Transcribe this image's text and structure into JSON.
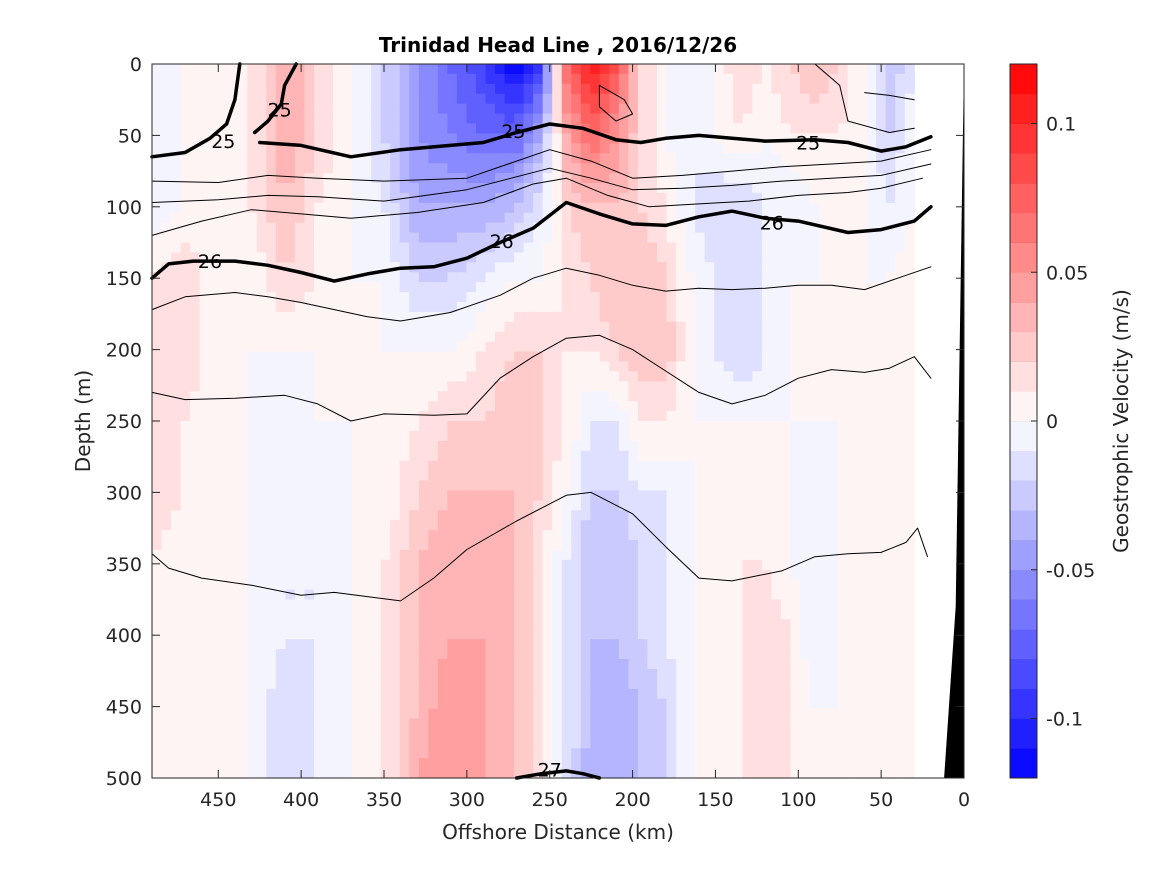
{
  "chart_data": {
    "type": "heatmap",
    "title": "Trinidad Head Line , 2016/12/26",
    "xlabel": "Offshore Distance (km)",
    "ylabel": "Depth (m)",
    "colorbar_label": "Geostrophic Velocity (m/s)",
    "xlim": [
      490,
      0
    ],
    "ylim": [
      0,
      500
    ],
    "x_reversed": true,
    "y_reversed": true,
    "x_ticks": [
      450,
      400,
      350,
      300,
      250,
      200,
      150,
      100,
      50,
      0
    ],
    "y_ticks": [
      0,
      50,
      100,
      150,
      200,
      250,
      300,
      350,
      400,
      450,
      500
    ],
    "colorbar_range": [
      -0.12,
      0.12
    ],
    "colorbar_ticks": [
      0.1,
      0.05,
      0,
      -0.05,
      -0.1
    ],
    "colorbar_levels": 24,
    "colormap": {
      "negative": "#0000ff",
      "zero": "#ffffff",
      "positive": "#ff0000"
    },
    "velocity_field": {
      "x": [
        490,
        470,
        450,
        430,
        410,
        390,
        370,
        350,
        330,
        310,
        290,
        270,
        255,
        240,
        225,
        210,
        195,
        180,
        165,
        150,
        135,
        120,
        105,
        90,
        75,
        60,
        45,
        30
      ],
      "depth": [
        0,
        50,
        100,
        150,
        200,
        250,
        300,
        350,
        400,
        450,
        500
      ],
      "values": [
        [
          -0.01,
          0.0,
          0.0,
          0.01,
          0.04,
          0.02,
          0.0,
          -0.02,
          -0.05,
          -0.07,
          -0.09,
          -0.12,
          -0.09,
          0.07,
          0.11,
          0.08,
          0.02,
          0.0,
          -0.01,
          0.0,
          0.02,
          0.01,
          0.02,
          0.03,
          0.02,
          0.0,
          -0.03,
          -0.01
        ],
        [
          -0.01,
          0.0,
          0.0,
          0.01,
          0.04,
          0.02,
          0.0,
          -0.02,
          -0.05,
          -0.06,
          -0.07,
          -0.07,
          -0.04,
          0.04,
          0.07,
          0.05,
          0.02,
          0.0,
          -0.01,
          0.0,
          0.01,
          0.0,
          0.01,
          0.01,
          0.01,
          0.0,
          -0.02,
          0.0
        ],
        [
          -0.01,
          0.0,
          0.0,
          0.01,
          0.03,
          0.01,
          0.0,
          -0.01,
          -0.04,
          -0.04,
          -0.04,
          -0.03,
          -0.01,
          0.02,
          0.03,
          0.03,
          0.02,
          0.01,
          -0.01,
          -0.02,
          -0.02,
          -0.01,
          -0.01,
          0.0,
          0.0,
          0.0,
          -0.01,
          0.0
        ],
        [
          0.01,
          0.02,
          0.0,
          0.0,
          0.02,
          0.01,
          0.0,
          0.0,
          -0.02,
          -0.02,
          -0.01,
          0.0,
          0.0,
          0.01,
          0.02,
          0.03,
          0.03,
          0.02,
          0.0,
          -0.01,
          -0.02,
          -0.01,
          0.0,
          0.0,
          0.0,
          0.0,
          0.0,
          0.01
        ],
        [
          0.02,
          0.02,
          0.0,
          0.0,
          0.0,
          0.0,
          0.0,
          0.0,
          0.0,
          0.0,
          0.01,
          0.02,
          0.02,
          0.01,
          0.01,
          0.02,
          0.03,
          0.03,
          0.0,
          -0.01,
          -0.02,
          -0.01,
          0.0,
          0.0,
          0.0,
          0.0,
          0.0,
          0.01
        ],
        [
          0.02,
          0.01,
          0.0,
          0.0,
          -0.01,
          0.0,
          0.0,
          0.0,
          0.01,
          0.02,
          0.02,
          0.03,
          0.02,
          0.01,
          -0.01,
          -0.01,
          0.01,
          0.01,
          0.0,
          0.0,
          0.0,
          0.0,
          0.0,
          0.0,
          0.0,
          0.0,
          0.0,
          0.0
        ],
        [
          0.02,
          0.01,
          0.0,
          0.0,
          -0.01,
          -0.01,
          0.0,
          0.0,
          0.02,
          0.03,
          0.03,
          0.03,
          0.02,
          0.0,
          -0.02,
          -0.02,
          -0.01,
          -0.01,
          0.0,
          0.0,
          0.0,
          0.0,
          0.0,
          -0.01,
          0.0,
          0.0,
          0.0,
          0.0
        ],
        [
          0.01,
          0.0,
          0.0,
          0.0,
          -0.01,
          -0.01,
          0.0,
          0.01,
          0.03,
          0.04,
          0.03,
          0.03,
          0.01,
          -0.01,
          -0.03,
          -0.03,
          -0.02,
          -0.01,
          0.0,
          0.0,
          0.01,
          0.01,
          0.0,
          -0.01,
          0.0,
          0.01,
          0.0,
          0.0
        ],
        [
          0.0,
          0.0,
          0.0,
          0.0,
          -0.01,
          -0.01,
          0.0,
          0.01,
          0.03,
          0.04,
          0.04,
          0.03,
          0.01,
          -0.01,
          -0.03,
          -0.03,
          -0.02,
          -0.01,
          0.0,
          0.0,
          0.01,
          0.02,
          0.01,
          -0.01,
          0.0,
          0.01,
          0.0,
          0.0
        ],
        [
          0.0,
          0.0,
          0.0,
          0.0,
          -0.02,
          -0.01,
          0.0,
          0.01,
          0.03,
          0.05,
          0.04,
          0.03,
          0.01,
          -0.01,
          -0.03,
          -0.04,
          -0.03,
          -0.02,
          0.0,
          0.0,
          0.01,
          0.02,
          0.01,
          0.0,
          0.0,
          0.01,
          0.0,
          0.0
        ],
        [
          0.0,
          0.0,
          0.0,
          0.0,
          -0.02,
          -0.01,
          0.0,
          0.01,
          0.04,
          0.05,
          0.04,
          0.03,
          0.01,
          -0.01,
          -0.04,
          -0.04,
          -0.03,
          -0.02,
          0.0,
          0.0,
          0.01,
          0.02,
          0.01,
          0.0,
          0.0,
          0.01,
          0.0,
          0.0
        ]
      ]
    },
    "density_contours": [
      {
        "label": "25",
        "bold": true,
        "points": [
          [
            490,
            65
          ],
          [
            470,
            62
          ],
          [
            455,
            52
          ],
          [
            445,
            42
          ],
          [
            440,
            25
          ],
          [
            437,
            0
          ]
        ]
      },
      {
        "label": "25",
        "bold": true,
        "points": [
          [
            428,
            48
          ],
          [
            420,
            40
          ],
          [
            412,
            28
          ],
          [
            410,
            15
          ],
          [
            403,
            0
          ]
        ]
      },
      {
        "label": "25",
        "bold": true,
        "points": [
          [
            425,
            55
          ],
          [
            400,
            57
          ],
          [
            370,
            65
          ],
          [
            340,
            60
          ],
          [
            310,
            57
          ],
          [
            290,
            55
          ],
          [
            270,
            48
          ],
          [
            250,
            42
          ],
          [
            230,
            45
          ],
          [
            210,
            53
          ],
          [
            195,
            55
          ],
          [
            180,
            52
          ],
          [
            160,
            50
          ],
          [
            140,
            52
          ],
          [
            120,
            54
          ],
          [
            90,
            53
          ],
          [
            70,
            55
          ],
          [
            50,
            61
          ],
          [
            35,
            58
          ],
          [
            20,
            51
          ]
        ]
      },
      {
        "label": "",
        "bold": false,
        "points": [
          [
            490,
            82
          ],
          [
            450,
            83
          ],
          [
            420,
            78
          ],
          [
            390,
            80
          ],
          [
            350,
            82
          ],
          [
            300,
            80
          ],
          [
            250,
            60
          ],
          [
            225,
            68
          ],
          [
            200,
            80
          ],
          [
            170,
            78
          ],
          [
            140,
            75
          ],
          [
            110,
            72
          ],
          [
            80,
            70
          ],
          [
            50,
            68
          ],
          [
            20,
            60
          ]
        ]
      },
      {
        "label": "",
        "bold": false,
        "points": [
          [
            490,
            97
          ],
          [
            450,
            95
          ],
          [
            420,
            92
          ],
          [
            390,
            93
          ],
          [
            350,
            96
          ],
          [
            300,
            88
          ],
          [
            250,
            73
          ],
          [
            225,
            80
          ],
          [
            200,
            88
          ],
          [
            170,
            87
          ],
          [
            140,
            85
          ],
          [
            110,
            82
          ],
          [
            80,
            80
          ],
          [
            50,
            78
          ],
          [
            20,
            70
          ]
        ]
      },
      {
        "label": "",
        "bold": false,
        "points": [
          [
            490,
            120
          ],
          [
            460,
            110
          ],
          [
            430,
            102
          ],
          [
            400,
            105
          ],
          [
            370,
            108
          ],
          [
            330,
            104
          ],
          [
            290,
            97
          ],
          [
            260,
            84
          ],
          [
            240,
            80
          ],
          [
            215,
            92
          ],
          [
            190,
            100
          ],
          [
            160,
            98
          ],
          [
            130,
            96
          ],
          [
            100,
            92
          ],
          [
            70,
            90
          ],
          [
            50,
            87
          ],
          [
            25,
            80
          ]
        ]
      },
      {
        "label": "26",
        "bold": true,
        "points": [
          [
            490,
            150
          ],
          [
            480,
            140
          ],
          [
            465,
            138
          ],
          [
            440,
            138
          ],
          [
            420,
            141
          ],
          [
            400,
            146
          ],
          [
            380,
            152
          ],
          [
            360,
            147
          ],
          [
            340,
            143
          ],
          [
            320,
            142
          ],
          [
            300,
            136
          ],
          [
            280,
            125
          ],
          [
            260,
            115
          ],
          [
            240,
            97
          ],
          [
            220,
            105
          ],
          [
            200,
            112
          ],
          [
            180,
            113
          ],
          [
            160,
            107
          ],
          [
            140,
            103
          ],
          [
            120,
            108
          ],
          [
            100,
            110
          ],
          [
            70,
            118
          ],
          [
            50,
            116
          ],
          [
            30,
            110
          ],
          [
            20,
            100
          ]
        ]
      },
      {
        "label": "",
        "bold": false,
        "points": [
          [
            490,
            172
          ],
          [
            470,
            163
          ],
          [
            440,
            160
          ],
          [
            420,
            163
          ],
          [
            400,
            167
          ],
          [
            380,
            172
          ],
          [
            360,
            177
          ],
          [
            340,
            180
          ],
          [
            310,
            174
          ],
          [
            280,
            162
          ],
          [
            260,
            150
          ],
          [
            240,
            143
          ],
          [
            220,
            148
          ],
          [
            200,
            155
          ],
          [
            180,
            159
          ],
          [
            160,
            157
          ],
          [
            140,
            158
          ],
          [
            120,
            157
          ],
          [
            100,
            155
          ],
          [
            80,
            155
          ],
          [
            60,
            158
          ],
          [
            40,
            150
          ],
          [
            20,
            142
          ]
        ]
      },
      {
        "label": "",
        "bold": false,
        "points": [
          [
            490,
            230
          ],
          [
            470,
            235
          ],
          [
            440,
            234
          ],
          [
            410,
            232
          ],
          [
            390,
            238
          ],
          [
            370,
            250
          ],
          [
            350,
            245
          ],
          [
            320,
            246
          ],
          [
            300,
            245
          ],
          [
            280,
            220
          ],
          [
            260,
            205
          ],
          [
            240,
            192
          ],
          [
            220,
            190
          ],
          [
            200,
            200
          ],
          [
            180,
            215
          ],
          [
            160,
            230
          ],
          [
            140,
            238
          ],
          [
            120,
            232
          ],
          [
            100,
            220
          ],
          [
            80,
            214
          ],
          [
            60,
            216
          ],
          [
            45,
            213
          ],
          [
            30,
            205
          ],
          [
            20,
            220
          ]
        ]
      },
      {
        "label": "",
        "bold": false,
        "points": [
          [
            490,
            343
          ],
          [
            480,
            353
          ],
          [
            460,
            360
          ],
          [
            430,
            365
          ],
          [
            400,
            372
          ],
          [
            380,
            370
          ],
          [
            360,
            373
          ],
          [
            340,
            376
          ],
          [
            320,
            360
          ],
          [
            300,
            340
          ],
          [
            270,
            320
          ],
          [
            240,
            302
          ],
          [
            225,
            300
          ],
          [
            200,
            315
          ],
          [
            180,
            338
          ],
          [
            160,
            360
          ],
          [
            140,
            362
          ],
          [
            110,
            355
          ],
          [
            90,
            345
          ],
          [
            70,
            343
          ],
          [
            50,
            342
          ],
          [
            35,
            335
          ],
          [
            28,
            325
          ],
          [
            22,
            345
          ]
        ]
      },
      {
        "label": "",
        "bold": false,
        "points": [
          [
            220,
            15
          ],
          [
            205,
            25
          ],
          [
            200,
            35
          ],
          [
            210,
            40
          ],
          [
            220,
            30
          ],
          [
            220,
            15
          ]
        ]
      },
      {
        "label": "",
        "bold": false,
        "points": [
          [
            90,
            0
          ],
          [
            75,
            15
          ],
          [
            70,
            40
          ],
          [
            45,
            48
          ],
          [
            30,
            45
          ]
        ]
      },
      {
        "label": "",
        "bold": false,
        "points": [
          [
            60,
            20
          ],
          [
            45,
            22
          ],
          [
            30,
            25
          ]
        ]
      },
      {
        "label": "27",
        "bold": true,
        "points": [
          [
            270,
            500
          ],
          [
            255,
            497
          ],
          [
            240,
            495
          ],
          [
            230,
            497
          ],
          [
            220,
            500
          ]
        ]
      }
    ],
    "contour_labels": [
      {
        "text": "25",
        "x": 447,
        "y": 54
      },
      {
        "text": "25",
        "x": 413,
        "y": 32
      },
      {
        "text": "25",
        "x": 272,
        "y": 47
      },
      {
        "text": "25",
        "x": 94,
        "y": 55
      },
      {
        "text": "26",
        "x": 455,
        "y": 138
      },
      {
        "text": "26",
        "x": 279,
        "y": 124
      },
      {
        "text": "26",
        "x": 116,
        "y": 111
      },
      {
        "text": "27",
        "x": 250,
        "y": 494
      }
    ],
    "bathymetry": {
      "color": "#000000",
      "points": [
        [
          25,
          500
        ],
        [
          12,
          500
        ],
        [
          5,
          380
        ],
        [
          0,
          0
        ],
        [
          0,
          500
        ]
      ]
    }
  }
}
